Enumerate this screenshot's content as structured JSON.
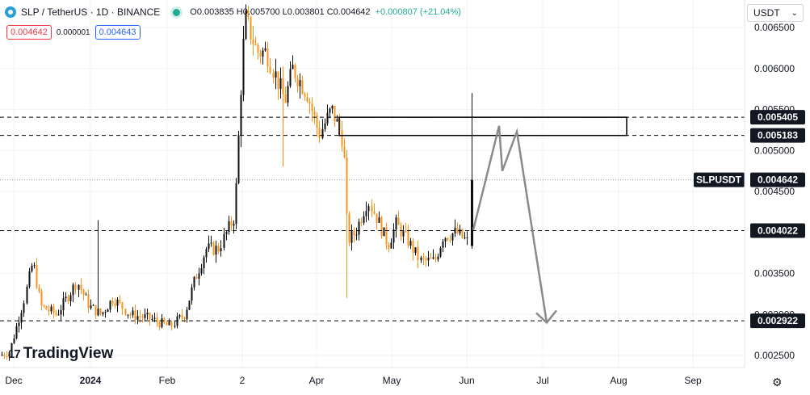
{
  "header": {
    "symbol": "SLP / TetherUS · 1D · BINANCE",
    "ohlc": "O0.003835 H0.005700 L0.003801 C0.004642",
    "change": "+0.000807 (+21.04%)",
    "sell_price": "0.004642",
    "spread": "0.000001",
    "buy_price": "0.004643",
    "currency": "USDT",
    "brand": "TradingView"
  },
  "colors": {
    "up": "#0f0f0f",
    "down": "#f7931a",
    "projection": "#8a8a8a",
    "label_bg": "#131722"
  },
  "chart_data": {
    "type": "candlestick",
    "ylim": [
      0.0023,
      0.0067
    ],
    "y_ticks": [
      "0.002500",
      "0.003000",
      "0.003500",
      "0.004500",
      "0.005000",
      "0.005500",
      "0.006000",
      "0.006500"
    ],
    "x_ticks": [
      "Dec",
      "2024",
      "Feb",
      "2",
      "Apr",
      "May",
      "Jun",
      "Jul",
      "Aug",
      "Sep"
    ],
    "last_price": {
      "name": "SLPUSDT",
      "label": "0.004642",
      "value": 0.004642
    },
    "levels": [
      {
        "label": "0.005405",
        "value": 0.005405
      },
      {
        "label": "0.005183",
        "value": 0.005183
      },
      {
        "label": "0.004022",
        "value": 0.004022
      },
      {
        "label": "0.002922",
        "value": 0.002922
      }
    ],
    "zone": {
      "from": 0.005183,
      "to": 0.005405
    },
    "projection": [
      0.00403,
      0.0053,
      0.00475,
      0.00523,
      0.0029
    ],
    "projection_arrow_tip": 0.0029
  }
}
